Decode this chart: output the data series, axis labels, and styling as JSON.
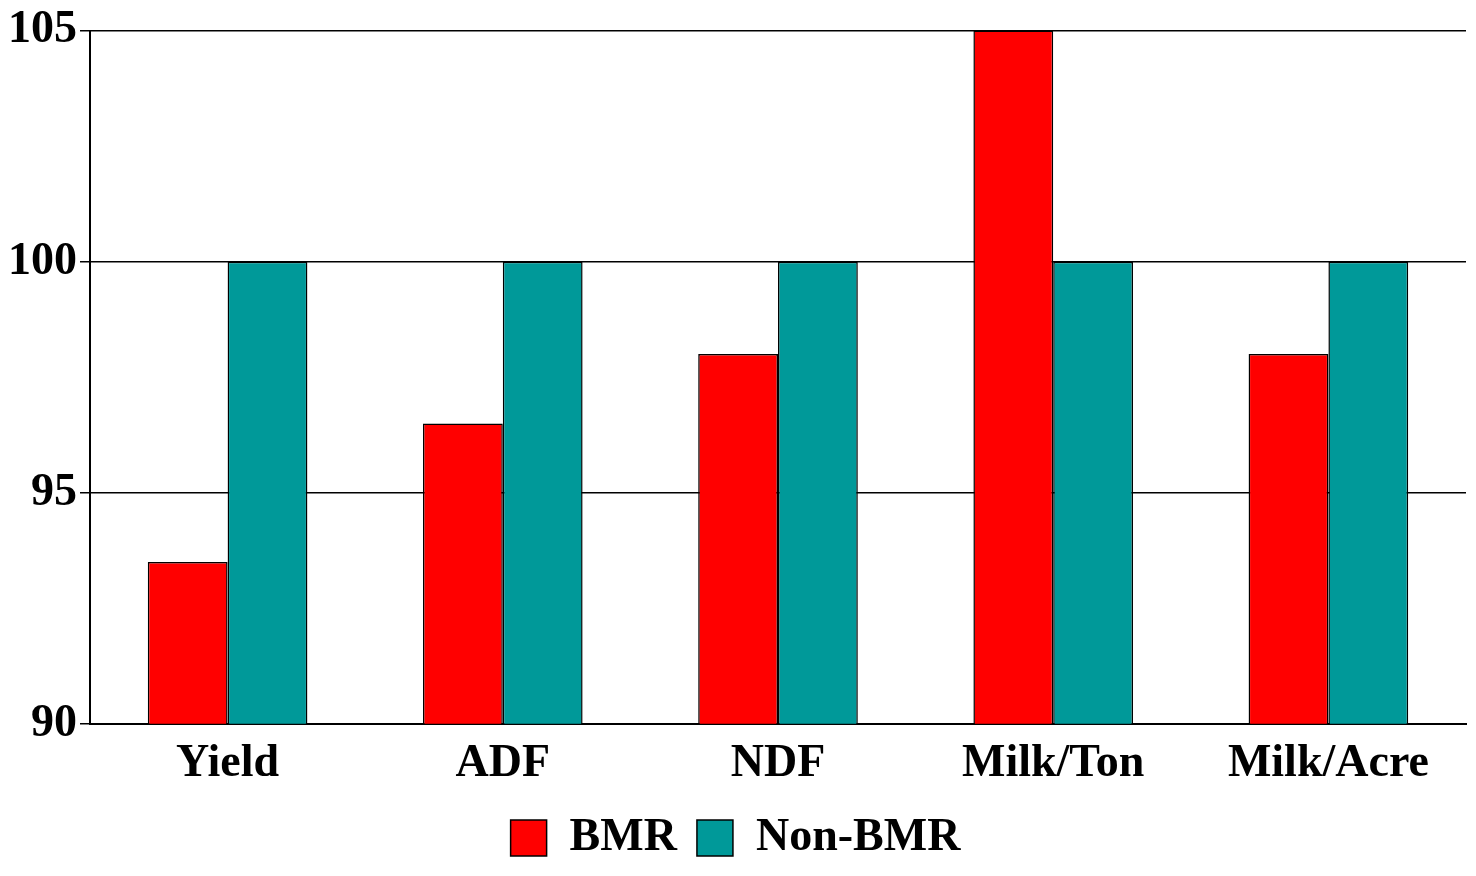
{
  "chart_data": {
    "type": "bar",
    "categories": [
      "Yield",
      "ADF",
      "NDF",
      "Milk/Ton",
      "Milk/Acre"
    ],
    "series": [
      {
        "name": "BMR",
        "color": "#ff0000",
        "values": [
          93.5,
          96.5,
          98,
          105,
          98
        ]
      },
      {
        "name": "Non-BMR",
        "color": "#009999",
        "values": [
          100,
          100,
          100,
          100,
          100
        ]
      }
    ],
    "ylim": [
      90,
      105
    ],
    "yticks": [
      90,
      95,
      100,
      105
    ],
    "grid": "y",
    "legend": "bottom"
  }
}
